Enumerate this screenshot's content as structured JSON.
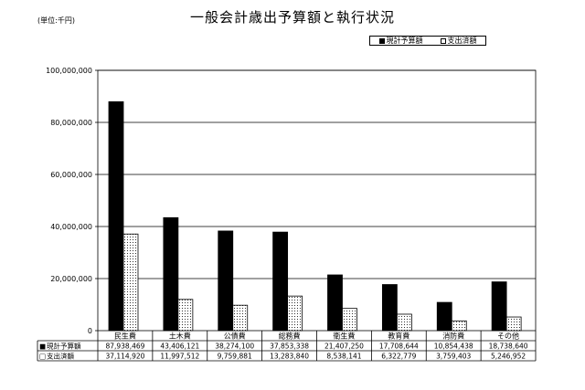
{
  "page": {
    "title": "一般会計歳出予算額と執行状況",
    "unit": "(単位:千円)"
  },
  "chart_data": {
    "type": "bar",
    "categories": [
      "民生費",
      "土木費",
      "公債費",
      "総務費",
      "衛生費",
      "教育費",
      "消防費",
      "その他"
    ],
    "series": [
      {
        "name": "現計予算額",
        "marker": "■",
        "color": "#000000",
        "values": [
          87938469,
          43406121,
          38274100,
          37853338,
          21407250,
          17708644,
          10854438,
          18738640
        ],
        "labels": [
          "87,938,469",
          "43,406,121",
          "38,274,100",
          "37,853,338",
          "21,407,250",
          "17,708,644",
          "10,854,438",
          "18,738,640"
        ]
      },
      {
        "name": "支出済額",
        "marker": "□",
        "color": "#ffffff",
        "values": [
          37114920,
          11997512,
          9759881,
          13283840,
          8538141,
          6322779,
          3759403,
          5246952
        ],
        "labels": [
          "37,114,920",
          "11,997,512",
          "9,759,881",
          "13,283,840",
          "8,538,141",
          "6,322,779",
          "3,759,403",
          "5,246,952"
        ]
      }
    ],
    "ylim": [
      0,
      100000000
    ],
    "yticks": [
      0,
      20000000,
      40000000,
      60000000,
      80000000,
      100000000
    ],
    "ytick_labels": [
      "0",
      "20,000,000",
      "40,000,000",
      "60,000,000",
      "80,000,000",
      "100,000,000"
    ],
    "grid": true,
    "legend_position": "top-right",
    "data_table": true
  }
}
